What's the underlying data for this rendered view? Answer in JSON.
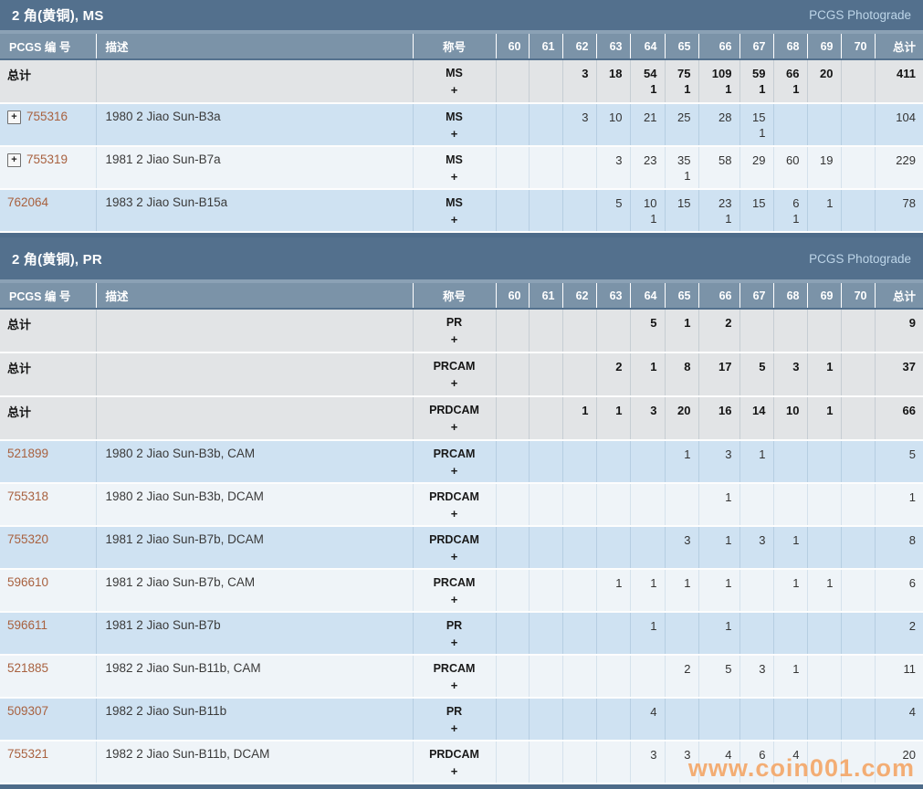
{
  "page": {
    "watermark": "www.coin001.com"
  },
  "colors": {
    "title_bar": "#53708d",
    "column_header": "#7b93a8",
    "total_row": "#e2e4e6",
    "row_blue": "#cfe2f2",
    "row_light": "#eff4f8",
    "pcgs_link": "#a8613f",
    "photograde_link": "#bdd5e8",
    "watermark": "#f4a462"
  },
  "columns": {
    "number": "PCGS 编 号",
    "description": "描述",
    "designation": "称号",
    "grades": [
      "60",
      "61",
      "62",
      "63",
      "64",
      "65",
      "66",
      "67",
      "68",
      "69",
      "70"
    ],
    "total": "总计"
  },
  "tables": [
    {
      "title": "2 角(黄铜), MS",
      "photograde": "PCGS Photograde",
      "rows": [
        {
          "type": "total",
          "shade": "gray",
          "number": "总计",
          "expandable": false,
          "description": "",
          "designation": "MS",
          "plus": "+",
          "grades": [
            "",
            "",
            "3",
            "18",
            "54",
            "75",
            "109",
            "59",
            "66",
            "20",
            ""
          ],
          "subs": [
            "",
            "",
            "",
            "",
            "1",
            "1",
            "1",
            "1",
            "1",
            "",
            ""
          ],
          "total": "411"
        },
        {
          "type": "data",
          "shade": "blue",
          "number": "755316",
          "expandable": true,
          "description": "1980 2 Jiao Sun-B3a",
          "designation": "MS",
          "plus": "+",
          "grades": [
            "",
            "",
            "3",
            "10",
            "21",
            "25",
            "28",
            "15",
            "",
            "",
            ""
          ],
          "subs": [
            "",
            "",
            "",
            "",
            "",
            "",
            "",
            "1",
            "",
            "",
            ""
          ],
          "total": "104"
        },
        {
          "type": "data",
          "shade": "light",
          "number": "755319",
          "expandable": true,
          "description": "1981 2 Jiao Sun-B7a",
          "designation": "MS",
          "plus": "+",
          "grades": [
            "",
            "",
            "",
            "3",
            "23",
            "35",
            "58",
            "29",
            "60",
            "19",
            ""
          ],
          "subs": [
            "",
            "",
            "",
            "",
            "",
            "1",
            "",
            "",
            "",
            "",
            ""
          ],
          "total": "229"
        },
        {
          "type": "data",
          "shade": "blue",
          "number": "762064",
          "expandable": false,
          "description": "1983 2 Jiao Sun-B15a",
          "designation": "MS",
          "plus": "+",
          "grades": [
            "",
            "",
            "",
            "5",
            "10",
            "15",
            "23",
            "15",
            "6",
            "1",
            ""
          ],
          "subs": [
            "",
            "",
            "",
            "",
            "1",
            "",
            "1",
            "",
            "1",
            "",
            ""
          ],
          "total": "78"
        }
      ]
    },
    {
      "title": "2 角(黄铜), PR",
      "photograde": "PCGS Photograde",
      "rows": [
        {
          "type": "total",
          "shade": "gray",
          "number": "总计",
          "expandable": false,
          "description": "",
          "designation": "PR",
          "plus": "+",
          "grades": [
            "",
            "",
            "",
            "",
            "5",
            "1",
            "2",
            "",
            "",
            "",
            ""
          ],
          "subs": [
            "",
            "",
            "",
            "",
            "",
            "",
            "",
            "",
            "",
            "",
            ""
          ],
          "total": "9"
        },
        {
          "type": "total",
          "shade": "gray",
          "number": "总计",
          "expandable": false,
          "description": "",
          "designation": "PRCAM",
          "plus": "+",
          "grades": [
            "",
            "",
            "",
            "2",
            "1",
            "8",
            "17",
            "5",
            "3",
            "1",
            ""
          ],
          "subs": [
            "",
            "",
            "",
            "",
            "",
            "",
            "",
            "",
            "",
            "",
            ""
          ],
          "total": "37"
        },
        {
          "type": "total",
          "shade": "gray",
          "number": "总计",
          "expandable": false,
          "description": "",
          "designation": "PRDCAM",
          "plus": "+",
          "grades": [
            "",
            "",
            "1",
            "1",
            "3",
            "20",
            "16",
            "14",
            "10",
            "1",
            ""
          ],
          "subs": [
            "",
            "",
            "",
            "",
            "",
            "",
            "",
            "",
            "",
            "",
            ""
          ],
          "total": "66"
        },
        {
          "type": "data",
          "shade": "blue",
          "number": "521899",
          "expandable": false,
          "description": "1980 2 Jiao Sun-B3b, CAM",
          "designation": "PRCAM",
          "plus": "+",
          "grades": [
            "",
            "",
            "",
            "",
            "",
            "1",
            "3",
            "1",
            "",
            "",
            ""
          ],
          "subs": [
            "",
            "",
            "",
            "",
            "",
            "",
            "",
            "",
            "",
            "",
            ""
          ],
          "total": "5"
        },
        {
          "type": "data",
          "shade": "light",
          "number": "755318",
          "expandable": false,
          "description": "1980 2 Jiao Sun-B3b, DCAM",
          "designation": "PRDCAM",
          "plus": "+",
          "grades": [
            "",
            "",
            "",
            "",
            "",
            "",
            "1",
            "",
            "",
            "",
            ""
          ],
          "subs": [
            "",
            "",
            "",
            "",
            "",
            "",
            "",
            "",
            "",
            "",
            ""
          ],
          "total": "1"
        },
        {
          "type": "data",
          "shade": "blue",
          "number": "755320",
          "expandable": false,
          "description": "1981 2 Jiao Sun-B7b, DCAM",
          "designation": "PRDCAM",
          "plus": "+",
          "grades": [
            "",
            "",
            "",
            "",
            "",
            "3",
            "1",
            "3",
            "1",
            "",
            ""
          ],
          "subs": [
            "",
            "",
            "",
            "",
            "",
            "",
            "",
            "",
            "",
            "",
            ""
          ],
          "total": "8"
        },
        {
          "type": "data",
          "shade": "light",
          "number": "596610",
          "expandable": false,
          "description": "1981 2 Jiao Sun-B7b, CAM",
          "designation": "PRCAM",
          "plus": "+",
          "grades": [
            "",
            "",
            "",
            "1",
            "1",
            "1",
            "1",
            "",
            "1",
            "1",
            ""
          ],
          "subs": [
            "",
            "",
            "",
            "",
            "",
            "",
            "",
            "",
            "",
            "",
            ""
          ],
          "total": "6"
        },
        {
          "type": "data",
          "shade": "blue",
          "number": "596611",
          "expandable": false,
          "description": "1981 2 Jiao Sun-B7b",
          "designation": "PR",
          "plus": "+",
          "grades": [
            "",
            "",
            "",
            "",
            "1",
            "",
            "1",
            "",
            "",
            "",
            ""
          ],
          "subs": [
            "",
            "",
            "",
            "",
            "",
            "",
            "",
            "",
            "",
            "",
            ""
          ],
          "total": "2"
        },
        {
          "type": "data",
          "shade": "light",
          "number": "521885",
          "expandable": false,
          "description": "1982 2 Jiao Sun-B11b, CAM",
          "designation": "PRCAM",
          "plus": "+",
          "grades": [
            "",
            "",
            "",
            "",
            "",
            "2",
            "5",
            "3",
            "1",
            "",
            ""
          ],
          "subs": [
            "",
            "",
            "",
            "",
            "",
            "",
            "",
            "",
            "",
            "",
            ""
          ],
          "total": "11"
        },
        {
          "type": "data",
          "shade": "blue",
          "number": "509307",
          "expandable": false,
          "description": "1982 2 Jiao Sun-B11b",
          "designation": "PR",
          "plus": "+",
          "grades": [
            "",
            "",
            "",
            "",
            "4",
            "",
            "",
            "",
            "",
            "",
            ""
          ],
          "subs": [
            "",
            "",
            "",
            "",
            "",
            "",
            "",
            "",
            "",
            "",
            ""
          ],
          "total": "4"
        },
        {
          "type": "data",
          "shade": "light",
          "number": "755321",
          "expandable": false,
          "description": "1982 2 Jiao Sun-B11b, DCAM",
          "designation": "PRDCAM",
          "plus": "+",
          "grades": [
            "",
            "",
            "",
            "",
            "3",
            "3",
            "4",
            "6",
            "4",
            "",
            ""
          ],
          "subs": [
            "",
            "",
            "",
            "",
            "",
            "",
            "",
            "",
            "",
            "",
            ""
          ],
          "total": "20"
        }
      ]
    }
  ]
}
